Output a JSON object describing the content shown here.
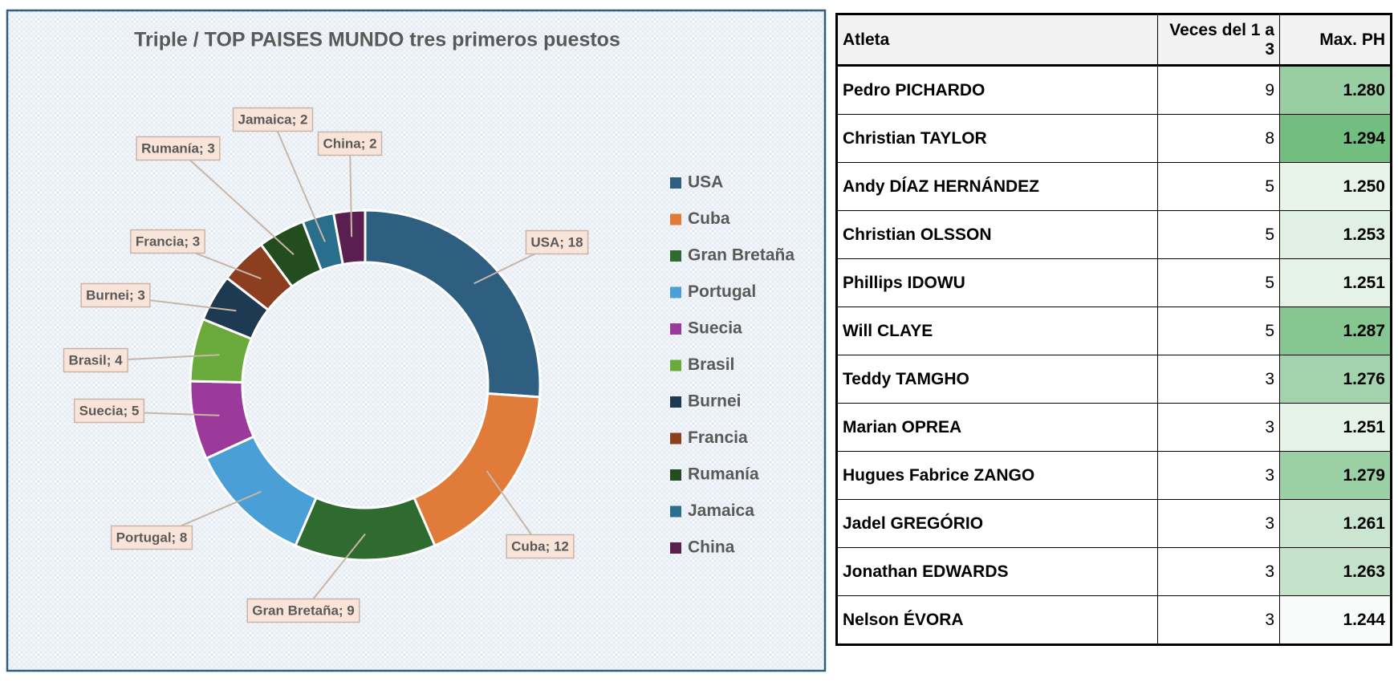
{
  "chart_data": {
    "type": "doughnut",
    "title": "Triple / TOP PAISES MUNDO tres primeros puestos",
    "categories": [
      "USA",
      "Cuba",
      "Gran Bretaña",
      "Portugal",
      "Suecia",
      "Brasil",
      "Burnei",
      "Francia",
      "Rumanía",
      "Jamaica",
      "China"
    ],
    "values": [
      18,
      12,
      9,
      8,
      5,
      4,
      3,
      3,
      3,
      2,
      2
    ],
    "value_labels": [
      "USA; 18",
      "Cuba; 12",
      "Gran Bretaña; 9",
      "Portugal; 8",
      "Suecia; 5",
      "Brasil; 4",
      "Burnei; 3",
      "Francia; 3",
      "Rumanía; 3",
      "Jamaica; 2",
      "China; 2"
    ],
    "colors": [
      "#2e5f80",
      "#e07b39",
      "#2f6b2f",
      "#4a9fd6",
      "#9b3a9b",
      "#6aaa3c",
      "#1e3a52",
      "#8b3f1e",
      "#234d1f",
      "#2a6e8e",
      "#5a1f4f"
    ],
    "legend": "right"
  },
  "table": {
    "columns": [
      "Atleta",
      "Veces del 1 a 3",
      "Max. PH"
    ],
    "rows": [
      [
        "Pedro PICHARDO",
        "9",
        "1.280"
      ],
      [
        "Christian TAYLOR",
        "8",
        "1.294"
      ],
      [
        "Andy DÍAZ HERNÁNDEZ",
        "5",
        "1.250"
      ],
      [
        "Christian OLSSON",
        "5",
        "1.253"
      ],
      [
        "Phillips IDOWU",
        "5",
        "1.251"
      ],
      [
        "Will CLAYE",
        "5",
        "1.287"
      ],
      [
        "Teddy TAMGHO",
        "3",
        "1.276"
      ],
      [
        "Marian OPREA",
        "3",
        "1.251"
      ],
      [
        "Hugues Fabrice ZANGO",
        "3",
        "1.279"
      ],
      [
        "Jadel GREGÓRIO",
        "3",
        "1.261"
      ],
      [
        "Jonathan EDWARDS",
        "3",
        "1.263"
      ],
      [
        "Nelson ÉVORA",
        "3",
        "1.244"
      ]
    ]
  }
}
